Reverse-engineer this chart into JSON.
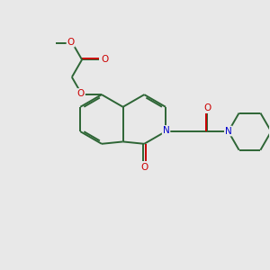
{
  "bg": "#e8e8e8",
  "bc": "#2d6535",
  "oc": "#cc0000",
  "nc": "#0000cc",
  "lw": 1.4,
  "fs": 7.5,
  "xlim": [
    0,
    10
  ],
  "ylim": [
    0,
    10
  ]
}
